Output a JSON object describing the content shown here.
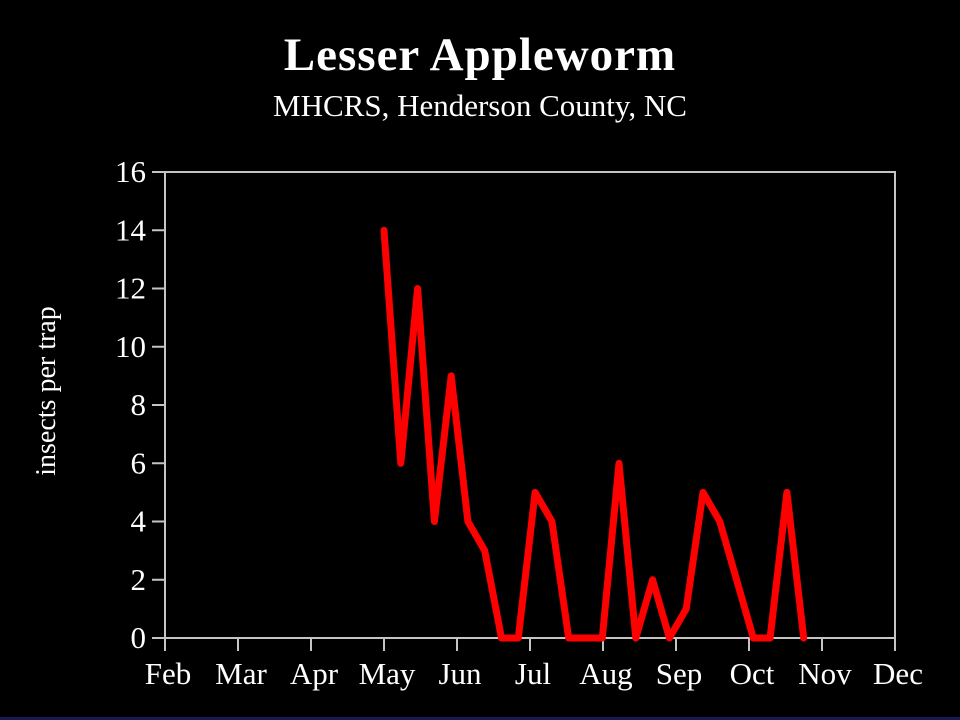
{
  "slide_title": "Lesser Appleworm",
  "slide_subtitle": "MHCRS, Henderson County, NC",
  "colors": {
    "background": "#000000",
    "text": "#ffffff",
    "axis": "#c4c4c4",
    "line": "#ff0000",
    "bottom_bar": "#191955"
  },
  "chart_data": {
    "type": "line",
    "title": "Lesser Appleworm",
    "subtitle": "MHCRS, Henderson County, NC",
    "ylabel": "insects per trap",
    "xlabel": "",
    "x_tick_labels": [
      "Feb",
      "Mar",
      "Apr",
      "May",
      "Jun",
      "Jul",
      "Aug",
      "Sep",
      "Oct",
      "Nov",
      "Dec"
    ],
    "y_tick_labels": [
      "0",
      "2",
      "4",
      "6",
      "8",
      "10",
      "12",
      "14",
      "16"
    ],
    "ylim": [
      0,
      16
    ],
    "grid": false,
    "legend": false,
    "series": [
      {
        "name": "insects per trap",
        "color": "#ff0000",
        "x_start_month": "May",
        "x_interval_days": 7,
        "values": [
          14,
          6,
          12,
          4,
          9,
          4,
          3,
          0,
          0,
          5,
          4,
          0,
          0,
          0,
          6,
          0,
          2,
          0,
          1,
          5,
          4,
          2,
          0,
          0,
          5,
          0
        ]
      }
    ]
  }
}
